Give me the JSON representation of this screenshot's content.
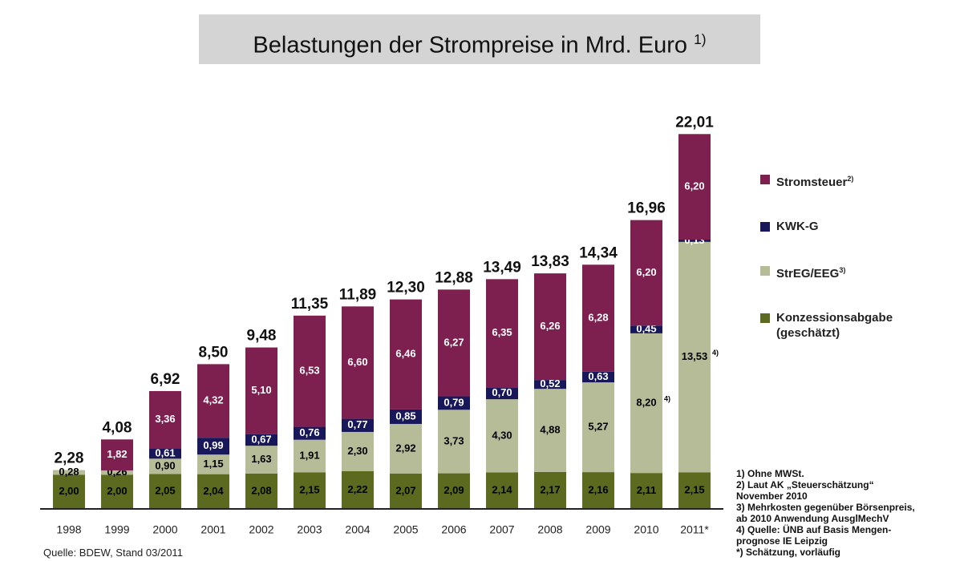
{
  "chart_data": {
    "type": "stacked_bar",
    "title": "Belastungen der Strompreise in Mrd. Euro",
    "title_note": "1)",
    "categories": [
      "1998",
      "1999",
      "2000",
      "2001",
      "2002",
      "2003",
      "2004",
      "2005",
      "2006",
      "2007",
      "2008",
      "2009",
      "2010",
      "2011*"
    ],
    "ylim": [
      0,
      24
    ],
    "series": [
      {
        "name": "Konzessionsabgabe (geschätzt)",
        "color": "#5b6a1e",
        "label_color": "#000000",
        "values": [
          2.0,
          2.0,
          2.05,
          2.04,
          2.08,
          2.15,
          2.22,
          2.07,
          2.09,
          2.14,
          2.17,
          2.16,
          2.11,
          2.15
        ],
        "value_labels": [
          "2,00",
          "2,00",
          "2,05",
          "2,04",
          "2,08",
          "2,15",
          "2,22",
          "2,07",
          "2,09",
          "2,14",
          "2,17",
          "2,16",
          "2,11",
          "2,15"
        ]
      },
      {
        "name": "StrEG/EEG",
        "note": "3)",
        "color": "#b6bc98",
        "label_color": "#000000",
        "values": [
          0.28,
          0.26,
          0.9,
          1.15,
          1.63,
          1.91,
          2.3,
          2.92,
          3.73,
          4.3,
          4.88,
          5.27,
          8.2,
          13.53
        ],
        "value_labels": [
          "0,28",
          "0,26",
          "0,90",
          "1,15",
          "1,63",
          "1,91",
          "2,30",
          "2,92",
          "3,73",
          "4,30",
          "4,88",
          "5,27",
          "8,20",
          "13,53"
        ],
        "value_notes": [
          null,
          null,
          null,
          null,
          null,
          null,
          null,
          null,
          null,
          null,
          null,
          null,
          "4)",
          "4)"
        ]
      },
      {
        "name": "KWK-G",
        "color": "#17175a",
        "label_color": "#ffffff",
        "values": [
          null,
          null,
          0.61,
          0.99,
          0.67,
          0.76,
          0.77,
          0.85,
          0.79,
          0.7,
          0.52,
          0.63,
          0.45,
          0.13
        ],
        "value_labels": [
          null,
          null,
          "0,61",
          "0,99",
          "0,67",
          "0,76",
          "0,77",
          "0,85",
          "0,79",
          "0,70",
          "0,52",
          "0,63",
          "0,45",
          "0,13"
        ]
      },
      {
        "name": "Stromsteuer",
        "note": "2)",
        "color": "#7d1f4f",
        "label_color": "#ffffff",
        "values": [
          null,
          1.82,
          3.36,
          4.32,
          5.1,
          6.53,
          6.6,
          6.46,
          6.27,
          6.35,
          6.26,
          6.28,
          6.2,
          6.2
        ],
        "value_labels": [
          null,
          "1,82",
          "3,36",
          "4,32",
          "5,10",
          "6,53",
          "6,60",
          "6,46",
          "6,27",
          "6,35",
          "6,26",
          "6,28",
          "6,20",
          "6,20"
        ]
      }
    ],
    "totals": [
      2.28,
      4.08,
      6.92,
      8.5,
      9.48,
      11.35,
      11.89,
      12.3,
      12.88,
      13.49,
      13.83,
      14.34,
      16.96,
      22.01
    ],
    "total_labels": [
      "2,28",
      "4,08",
      "6,92",
      "8,50",
      "9,48",
      "11,35",
      "11,89",
      "12,30",
      "12,88",
      "13,49",
      "13,83",
      "14,34",
      "16,96",
      "22,01"
    ],
    "footnotes": [
      "1) Ohne MWSt.",
      "2) Laut AK „Steuerschätzung“",
      "November 2010",
      "3) Mehrkosten gegenüber Börsenpreis,",
      "ab 2010 Anwendung AusglMechV",
      "4) Quelle: ÜNB auf Basis Mengen-",
      "prognose IE Leipzig",
      "*) Schätzung, vorläufig"
    ],
    "source": "Quelle: BDEW, Stand 03/2011"
  }
}
